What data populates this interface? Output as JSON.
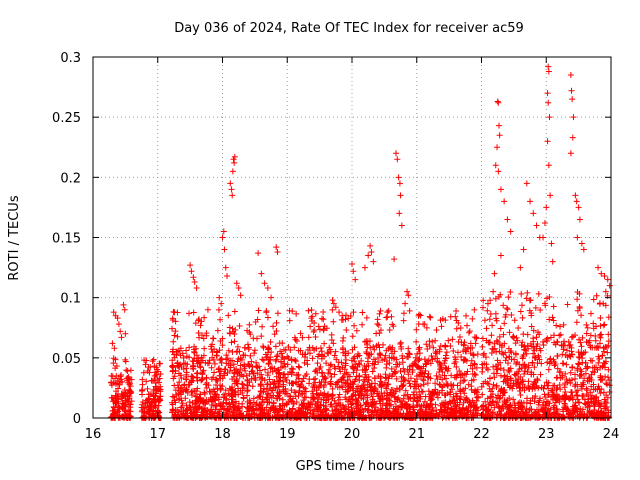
{
  "chart_data": {
    "type": "scatter",
    "title": "Day 036 of 2024, Rate Of TEC Index for receiver ac59",
    "xlabel": "GPS time / hours",
    "ylabel": "ROTI / TECUs",
    "xlim": [
      16,
      24
    ],
    "ylim": [
      0,
      0.3
    ],
    "x_ticks": [
      "16",
      "17",
      "18",
      "19",
      "20",
      "21",
      "22",
      "23",
      "24"
    ],
    "y_ticks": [
      "0",
      "0.05",
      "0.1",
      "0.15",
      "0.2",
      "0.25",
      "0.3"
    ],
    "x_tick_values": [
      16,
      17,
      18,
      19,
      20,
      21,
      22,
      23,
      24
    ],
    "y_tick_values": [
      0,
      0.05,
      0.1,
      0.15,
      0.2,
      0.25,
      0.3
    ],
    "grid": true,
    "marker": "+",
    "colors": {
      "series": "#ff0000",
      "grid": "#a0a0a0",
      "axis": "#000000"
    },
    "series": [
      {
        "name": "ROTI",
        "points": [
          [
            16.32,
            0.088
          ],
          [
            16.35,
            0.085
          ],
          [
            16.38,
            0.083
          ],
          [
            16.4,
            0.078
          ],
          [
            16.42,
            0.072
          ],
          [
            16.44,
            0.067
          ],
          [
            16.47,
            0.094
          ],
          [
            16.49,
            0.09
          ],
          [
            16.5,
            0.07
          ],
          [
            16.3,
            0.062
          ],
          [
            16.33,
            0.058
          ],
          [
            16.36,
            0.035
          ],
          [
            16.4,
            0.033
          ],
          [
            16.45,
            0.03
          ],
          [
            18.02,
            0.155
          ],
          [
            18.0,
            0.15
          ],
          [
            18.03,
            0.14
          ],
          [
            18.05,
            0.125
          ],
          [
            18.07,
            0.118
          ],
          [
            18.12,
            0.195
          ],
          [
            18.14,
            0.19
          ],
          [
            18.15,
            0.185
          ],
          [
            18.17,
            0.215
          ],
          [
            18.18,
            0.212
          ],
          [
            18.19,
            0.217
          ],
          [
            18.16,
            0.205
          ],
          [
            18.22,
            0.112
          ],
          [
            18.25,
            0.108
          ],
          [
            18.28,
            0.102
          ],
          [
            17.5,
            0.127
          ],
          [
            17.52,
            0.122
          ],
          [
            17.55,
            0.117
          ],
          [
            17.57,
            0.113
          ],
          [
            17.6,
            0.108
          ],
          [
            17.95,
            0.1
          ],
          [
            17.98,
            0.095
          ],
          [
            18.55,
            0.137
          ],
          [
            18.6,
            0.12
          ],
          [
            18.65,
            0.112
          ],
          [
            18.7,
            0.108
          ],
          [
            18.75,
            0.1
          ],
          [
            18.83,
            0.142
          ],
          [
            18.85,
            0.138
          ],
          [
            17.3,
            0.055
          ],
          [
            17.35,
            0.052
          ],
          [
            17.4,
            0.05
          ],
          [
            20.0,
            0.128
          ],
          [
            20.02,
            0.122
          ],
          [
            20.05,
            0.115
          ],
          [
            20.2,
            0.125
          ],
          [
            20.25,
            0.135
          ],
          [
            20.28,
            0.143
          ],
          [
            20.3,
            0.138
          ],
          [
            20.33,
            0.13
          ],
          [
            20.68,
            0.22
          ],
          [
            20.7,
            0.215
          ],
          [
            20.72,
            0.2
          ],
          [
            20.74,
            0.195
          ],
          [
            20.75,
            0.185
          ],
          [
            20.73,
            0.17
          ],
          [
            20.77,
            0.16
          ],
          [
            20.65,
            0.132
          ],
          [
            20.85,
            0.105
          ],
          [
            20.87,
            0.102
          ],
          [
            20.82,
            0.095
          ],
          [
            19.7,
            0.098
          ],
          [
            19.72,
            0.095
          ],
          [
            19.75,
            0.092
          ],
          [
            19.8,
            0.088
          ],
          [
            19.85,
            0.085
          ],
          [
            19.9,
            0.082
          ],
          [
            22.25,
            0.263
          ],
          [
            22.26,
            0.262
          ],
          [
            22.27,
            0.243
          ],
          [
            22.28,
            0.235
          ],
          [
            22.24,
            0.225
          ],
          [
            22.22,
            0.21
          ],
          [
            22.26,
            0.205
          ],
          [
            22.3,
            0.19
          ],
          [
            22.35,
            0.18
          ],
          [
            22.4,
            0.165
          ],
          [
            22.45,
            0.155
          ],
          [
            22.3,
            0.135
          ],
          [
            22.2,
            0.12
          ],
          [
            22.18,
            0.105
          ],
          [
            22.1,
            0.095
          ],
          [
            23.03,
            0.292
          ],
          [
            23.04,
            0.288
          ],
          [
            23.02,
            0.27
          ],
          [
            23.03,
            0.262
          ],
          [
            23.05,
            0.25
          ],
          [
            23.02,
            0.23
          ],
          [
            23.04,
            0.21
          ],
          [
            23.06,
            0.185
          ],
          [
            23.0,
            0.175
          ],
          [
            22.98,
            0.162
          ],
          [
            22.95,
            0.15
          ],
          [
            23.08,
            0.145
          ],
          [
            23.1,
            0.13
          ],
          [
            23.38,
            0.285
          ],
          [
            23.39,
            0.272
          ],
          [
            23.4,
            0.265
          ],
          [
            23.42,
            0.25
          ],
          [
            23.41,
            0.233
          ],
          [
            23.38,
            0.22
          ],
          [
            23.45,
            0.185
          ],
          [
            23.47,
            0.18
          ],
          [
            23.5,
            0.175
          ],
          [
            23.52,
            0.165
          ],
          [
            23.48,
            0.15
          ],
          [
            23.55,
            0.145
          ],
          [
            23.58,
            0.14
          ],
          [
            23.8,
            0.125
          ],
          [
            23.85,
            0.12
          ],
          [
            23.9,
            0.118
          ],
          [
            23.95,
            0.115
          ],
          [
            23.98,
            0.11
          ],
          [
            23.92,
            0.105
          ],
          [
            23.88,
            0.095
          ],
          [
            22.7,
            0.195
          ],
          [
            22.75,
            0.18
          ],
          [
            22.8,
            0.17
          ],
          [
            22.85,
            0.16
          ],
          [
            22.9,
            0.15
          ],
          [
            22.65,
            0.14
          ],
          [
            22.6,
            0.125
          ]
        ]
      }
    ]
  }
}
